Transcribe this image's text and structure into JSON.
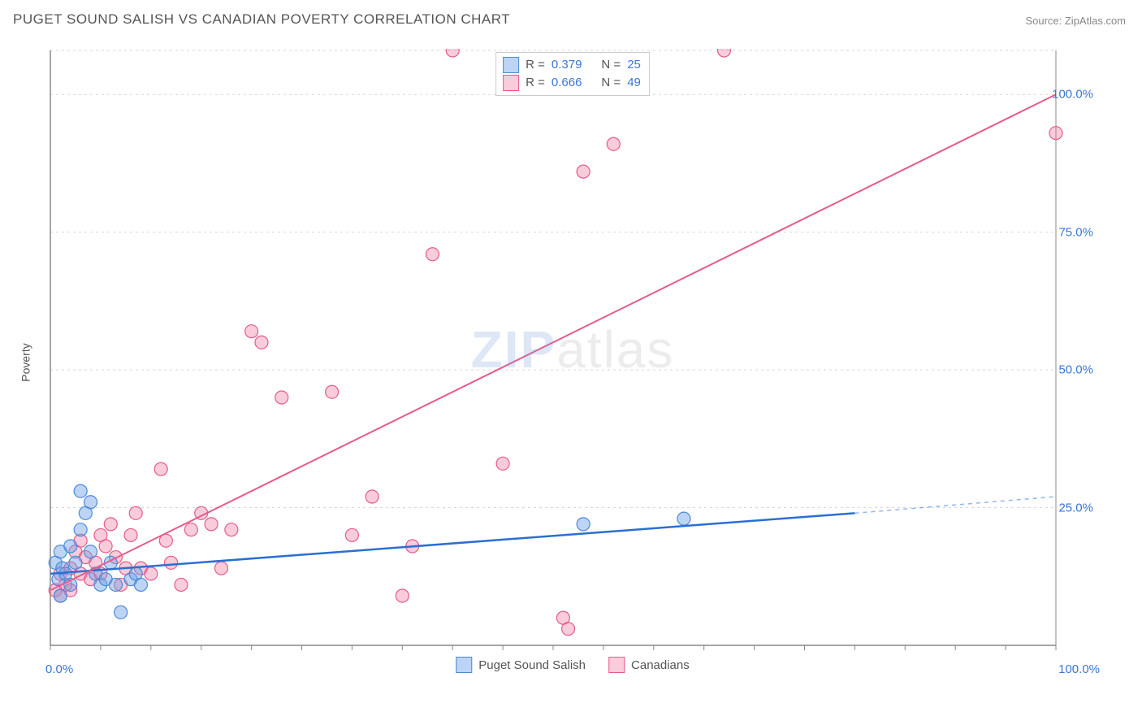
{
  "title": "PUGET SOUND SALISH VS CANADIAN POVERTY CORRELATION CHART",
  "source_label": "Source: ZipAtlas.com",
  "ylabel": "Poverty",
  "watermark": {
    "bold": "ZIP",
    "rest": "atlas"
  },
  "chart": {
    "type": "scatter",
    "xlim": [
      0,
      100
    ],
    "ylim": [
      0,
      108
    ],
    "background": "#ffffff",
    "grid_color": "#d7d7d7",
    "axis_color": "#888888",
    "ytick_values": [
      25,
      50,
      75,
      100
    ],
    "ytick_labels": [
      "25.0%",
      "50.0%",
      "75.0%",
      "100.0%"
    ],
    "x_minor_ticks": [
      0,
      5,
      10,
      15,
      20,
      25,
      30,
      35,
      40,
      45,
      50,
      55,
      60,
      65,
      70,
      75,
      80,
      85,
      90,
      95,
      100
    ],
    "x_label_min": "0.0%",
    "x_label_max": "100.0%",
    "marker_radius": 8,
    "series": [
      {
        "name": "Puget Sound Salish",
        "color_fill": "rgba(110,160,230,0.45)",
        "color_stroke": "#4b8ad8",
        "R": "0.379",
        "N": "25",
        "trend": {
          "x1": 0,
          "y1": 13,
          "x2": 80,
          "y2": 24,
          "dash_to_x": 100,
          "dash_to_y": 27,
          "color": "#2b6fd3",
          "width": 2.5
        },
        "points": [
          [
            0.5,
            15
          ],
          [
            0.8,
            12
          ],
          [
            1,
            17
          ],
          [
            1,
            9
          ],
          [
            1.2,
            14
          ],
          [
            1.5,
            13
          ],
          [
            2,
            18
          ],
          [
            2,
            11
          ],
          [
            2.5,
            15
          ],
          [
            3,
            28
          ],
          [
            3,
            21
          ],
          [
            3.5,
            24
          ],
          [
            4,
            26
          ],
          [
            4,
            17
          ],
          [
            4.5,
            13
          ],
          [
            5,
            11
          ],
          [
            5.5,
            12
          ],
          [
            6,
            15
          ],
          [
            6.5,
            11
          ],
          [
            7,
            6
          ],
          [
            8,
            12
          ],
          [
            8.5,
            13
          ],
          [
            9,
            11
          ],
          [
            53,
            22
          ],
          [
            63,
            23
          ]
        ]
      },
      {
        "name": "Canadians",
        "color_fill": "rgba(235,110,150,0.35)",
        "color_stroke": "#e65b8a",
        "R": "0.666",
        "N": "49",
        "trend": {
          "x1": 0,
          "y1": 10,
          "x2": 100,
          "y2": 100,
          "color": "#e65b8a",
          "width": 2
        },
        "points": [
          [
            0.5,
            10
          ],
          [
            1,
            13
          ],
          [
            1,
            9
          ],
          [
            1.5,
            11
          ],
          [
            2,
            14
          ],
          [
            2,
            10
          ],
          [
            2.5,
            17
          ],
          [
            3,
            19
          ],
          [
            3,
            13
          ],
          [
            3.5,
            16
          ],
          [
            4,
            12
          ],
          [
            4.5,
            15
          ],
          [
            5,
            20
          ],
          [
            5,
            13
          ],
          [
            5.5,
            18
          ],
          [
            6,
            22
          ],
          [
            6.5,
            16
          ],
          [
            7,
            11
          ],
          [
            7.5,
            14
          ],
          [
            8,
            20
          ],
          [
            8.5,
            24
          ],
          [
            9,
            14
          ],
          [
            10,
            13
          ],
          [
            11,
            32
          ],
          [
            11.5,
            19
          ],
          [
            12,
            15
          ],
          [
            13,
            11
          ],
          [
            14,
            21
          ],
          [
            15,
            24
          ],
          [
            16,
            22
          ],
          [
            17,
            14
          ],
          [
            18,
            21
          ],
          [
            20,
            57
          ],
          [
            21,
            55
          ],
          [
            23,
            45
          ],
          [
            28,
            46
          ],
          [
            30,
            20
          ],
          [
            32,
            27
          ],
          [
            35,
            9
          ],
          [
            36,
            18
          ],
          [
            38,
            71
          ],
          [
            40,
            108
          ],
          [
            45,
            33
          ],
          [
            51,
            5
          ],
          [
            51.5,
            3
          ],
          [
            53,
            86
          ],
          [
            56,
            91
          ],
          [
            67,
            108
          ],
          [
            100,
            93
          ]
        ]
      }
    ]
  },
  "legend_top_rows": [
    {
      "swatch_fill": "rgba(110,160,230,0.45)",
      "swatch_stroke": "#4b8ad8",
      "r_label": "R =",
      "r_val": "0.379",
      "n_label": "N =",
      "n_val": "25"
    },
    {
      "swatch_fill": "rgba(235,110,150,0.35)",
      "swatch_stroke": "#e65b8a",
      "r_label": "R =",
      "r_val": "0.666",
      "n_label": "N =",
      "n_val": "49"
    }
  ],
  "legend_bottom": [
    {
      "swatch_fill": "rgba(110,160,230,0.45)",
      "swatch_stroke": "#4b8ad8",
      "label": "Puget Sound Salish"
    },
    {
      "swatch_fill": "rgba(235,110,150,0.35)",
      "swatch_stroke": "#e65b8a",
      "label": "Canadians"
    }
  ]
}
